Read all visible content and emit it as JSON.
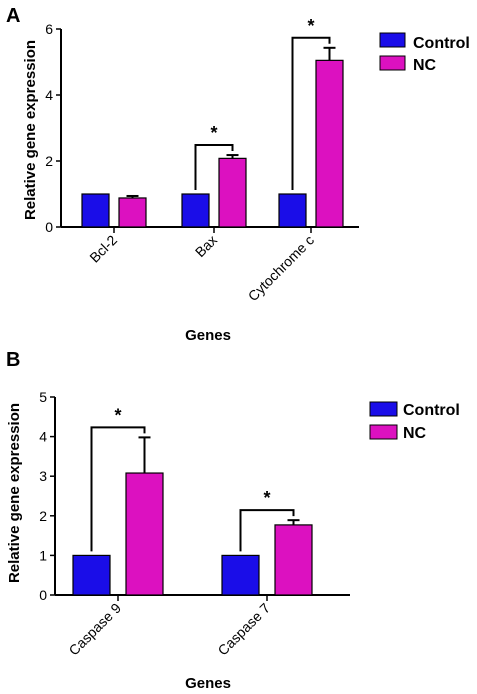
{
  "chart_data": [
    {
      "panel": "A",
      "type": "bar",
      "categories": [
        "Bcl-2",
        "Bax",
        "Cytochrome c"
      ],
      "series": [
        {
          "name": "Control",
          "values": [
            1.0,
            1.0,
            1.0
          ],
          "errors": [
            0,
            0,
            0
          ]
        },
        {
          "name": "NC",
          "values": [
            0.88,
            2.08,
            5.05
          ],
          "errors": [
            0.06,
            0.1,
            0.38
          ]
        }
      ],
      "significance": [
        "",
        "*",
        "*"
      ],
      "xlabel": "Genes",
      "ylabel": "Relative gene expression",
      "ylim": [
        0,
        6
      ],
      "yticks": [
        "0",
        "2",
        "4",
        "6"
      ],
      "legend_position": "top-right",
      "grid": false
    },
    {
      "panel": "B",
      "type": "bar",
      "categories": [
        "Caspase 9",
        "Caspase 7"
      ],
      "series": [
        {
          "name": "Control",
          "values": [
            1.0,
            1.0
          ],
          "errors": [
            0,
            0
          ]
        },
        {
          "name": "NC",
          "values": [
            3.08,
            1.77
          ],
          "errors": [
            0.9,
            0.12
          ]
        }
      ],
      "significance": [
        "*",
        "*"
      ],
      "xlabel": "Genes",
      "ylabel": "Relative gene expression",
      "ylim": [
        0,
        5
      ],
      "yticks": [
        "0",
        "1",
        "2",
        "3",
        "4",
        "5"
      ],
      "legend_position": "top-right",
      "grid": false
    }
  ],
  "colors": {
    "control": "#1a0de8",
    "nc": "#dc11c0",
    "axis": "#000000"
  }
}
